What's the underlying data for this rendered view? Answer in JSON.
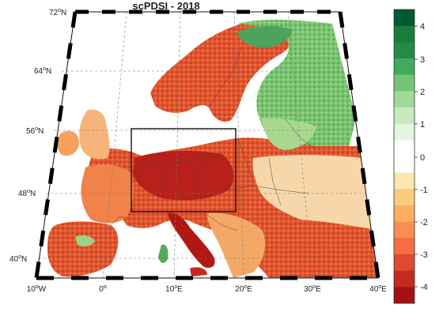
{
  "title": "scPDSI - 2018",
  "lat_labels": [
    {
      "deg": "72",
      "hemi": "N"
    },
    {
      "deg": "64",
      "hemi": "N"
    },
    {
      "deg": "56",
      "hemi": "N"
    },
    {
      "deg": "48",
      "hemi": "N"
    },
    {
      "deg": "40",
      "hemi": "N"
    }
  ],
  "lon_labels": [
    {
      "deg": "10",
      "hemi": "W"
    },
    {
      "deg": "0",
      "hemi": ""
    },
    {
      "deg": "10",
      "hemi": "E"
    },
    {
      "deg": "20",
      "hemi": "E"
    },
    {
      "deg": "30",
      "hemi": "E"
    },
    {
      "deg": "40",
      "hemi": "E"
    }
  ],
  "colorbar": {
    "ticks": [
      "4",
      "3",
      "2",
      "1",
      "0",
      "-1",
      "-2",
      "-3",
      "-4"
    ],
    "colors": [
      "#005a32",
      "#1a7d3c",
      "#238b45",
      "#41ab5d",
      "#74c476",
      "#a1d99b",
      "#c7e9c0",
      "#e5f5e0",
      "#ffffff",
      "#ffffff",
      "#fee6b0",
      "#fdcb7e",
      "#fdae61",
      "#f98e52",
      "#f46d43",
      "#de4a2e",
      "#c62a1f",
      "#a50f15"
    ]
  },
  "colors": {
    "dry_strong": "#b81f1a",
    "dry_mid": "#ee6a3c",
    "dry_light": "#f9b277",
    "neutral": "#fbf1e1",
    "wet_light": "#bfe3a5",
    "wet_mid": "#73c06b",
    "wet_strong": "#2e8b48",
    "ocean": "#ffffff"
  }
}
